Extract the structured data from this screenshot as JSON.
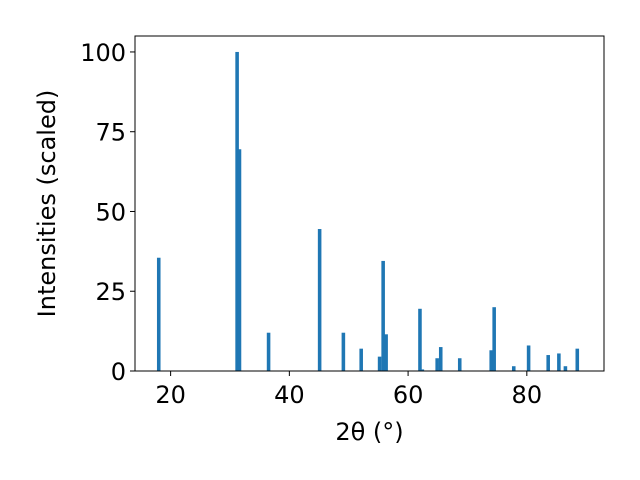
{
  "chart_data": {
    "type": "bar",
    "xlabel": "2θ (°)",
    "ylabel": "Intensities (scaled)",
    "xlim": [
      14,
      93
    ],
    "ylim": [
      0,
      105
    ],
    "xticks": [
      20,
      40,
      60,
      80
    ],
    "yticks": [
      0,
      25,
      50,
      75,
      100
    ],
    "grid": false,
    "bar_color": "#1f77b4",
    "bar_width": 0.6,
    "x": [
      18.0,
      31.2,
      31.6,
      36.5,
      45.1,
      49.1,
      52.1,
      55.2,
      55.8,
      56.3,
      62.0,
      62.4,
      64.9,
      65.5,
      68.7,
      74.0,
      74.5,
      77.8,
      80.3,
      83.6,
      85.4,
      86.5,
      88.5
    ],
    "values": [
      35.5,
      100,
      69.5,
      12,
      44.5,
      12,
      7,
      4.5,
      34.5,
      11.5,
      19.5,
      0.5,
      4,
      7.5,
      4,
      6.5,
      20,
      1.5,
      8,
      5,
      5.5,
      1.5,
      7
    ]
  }
}
